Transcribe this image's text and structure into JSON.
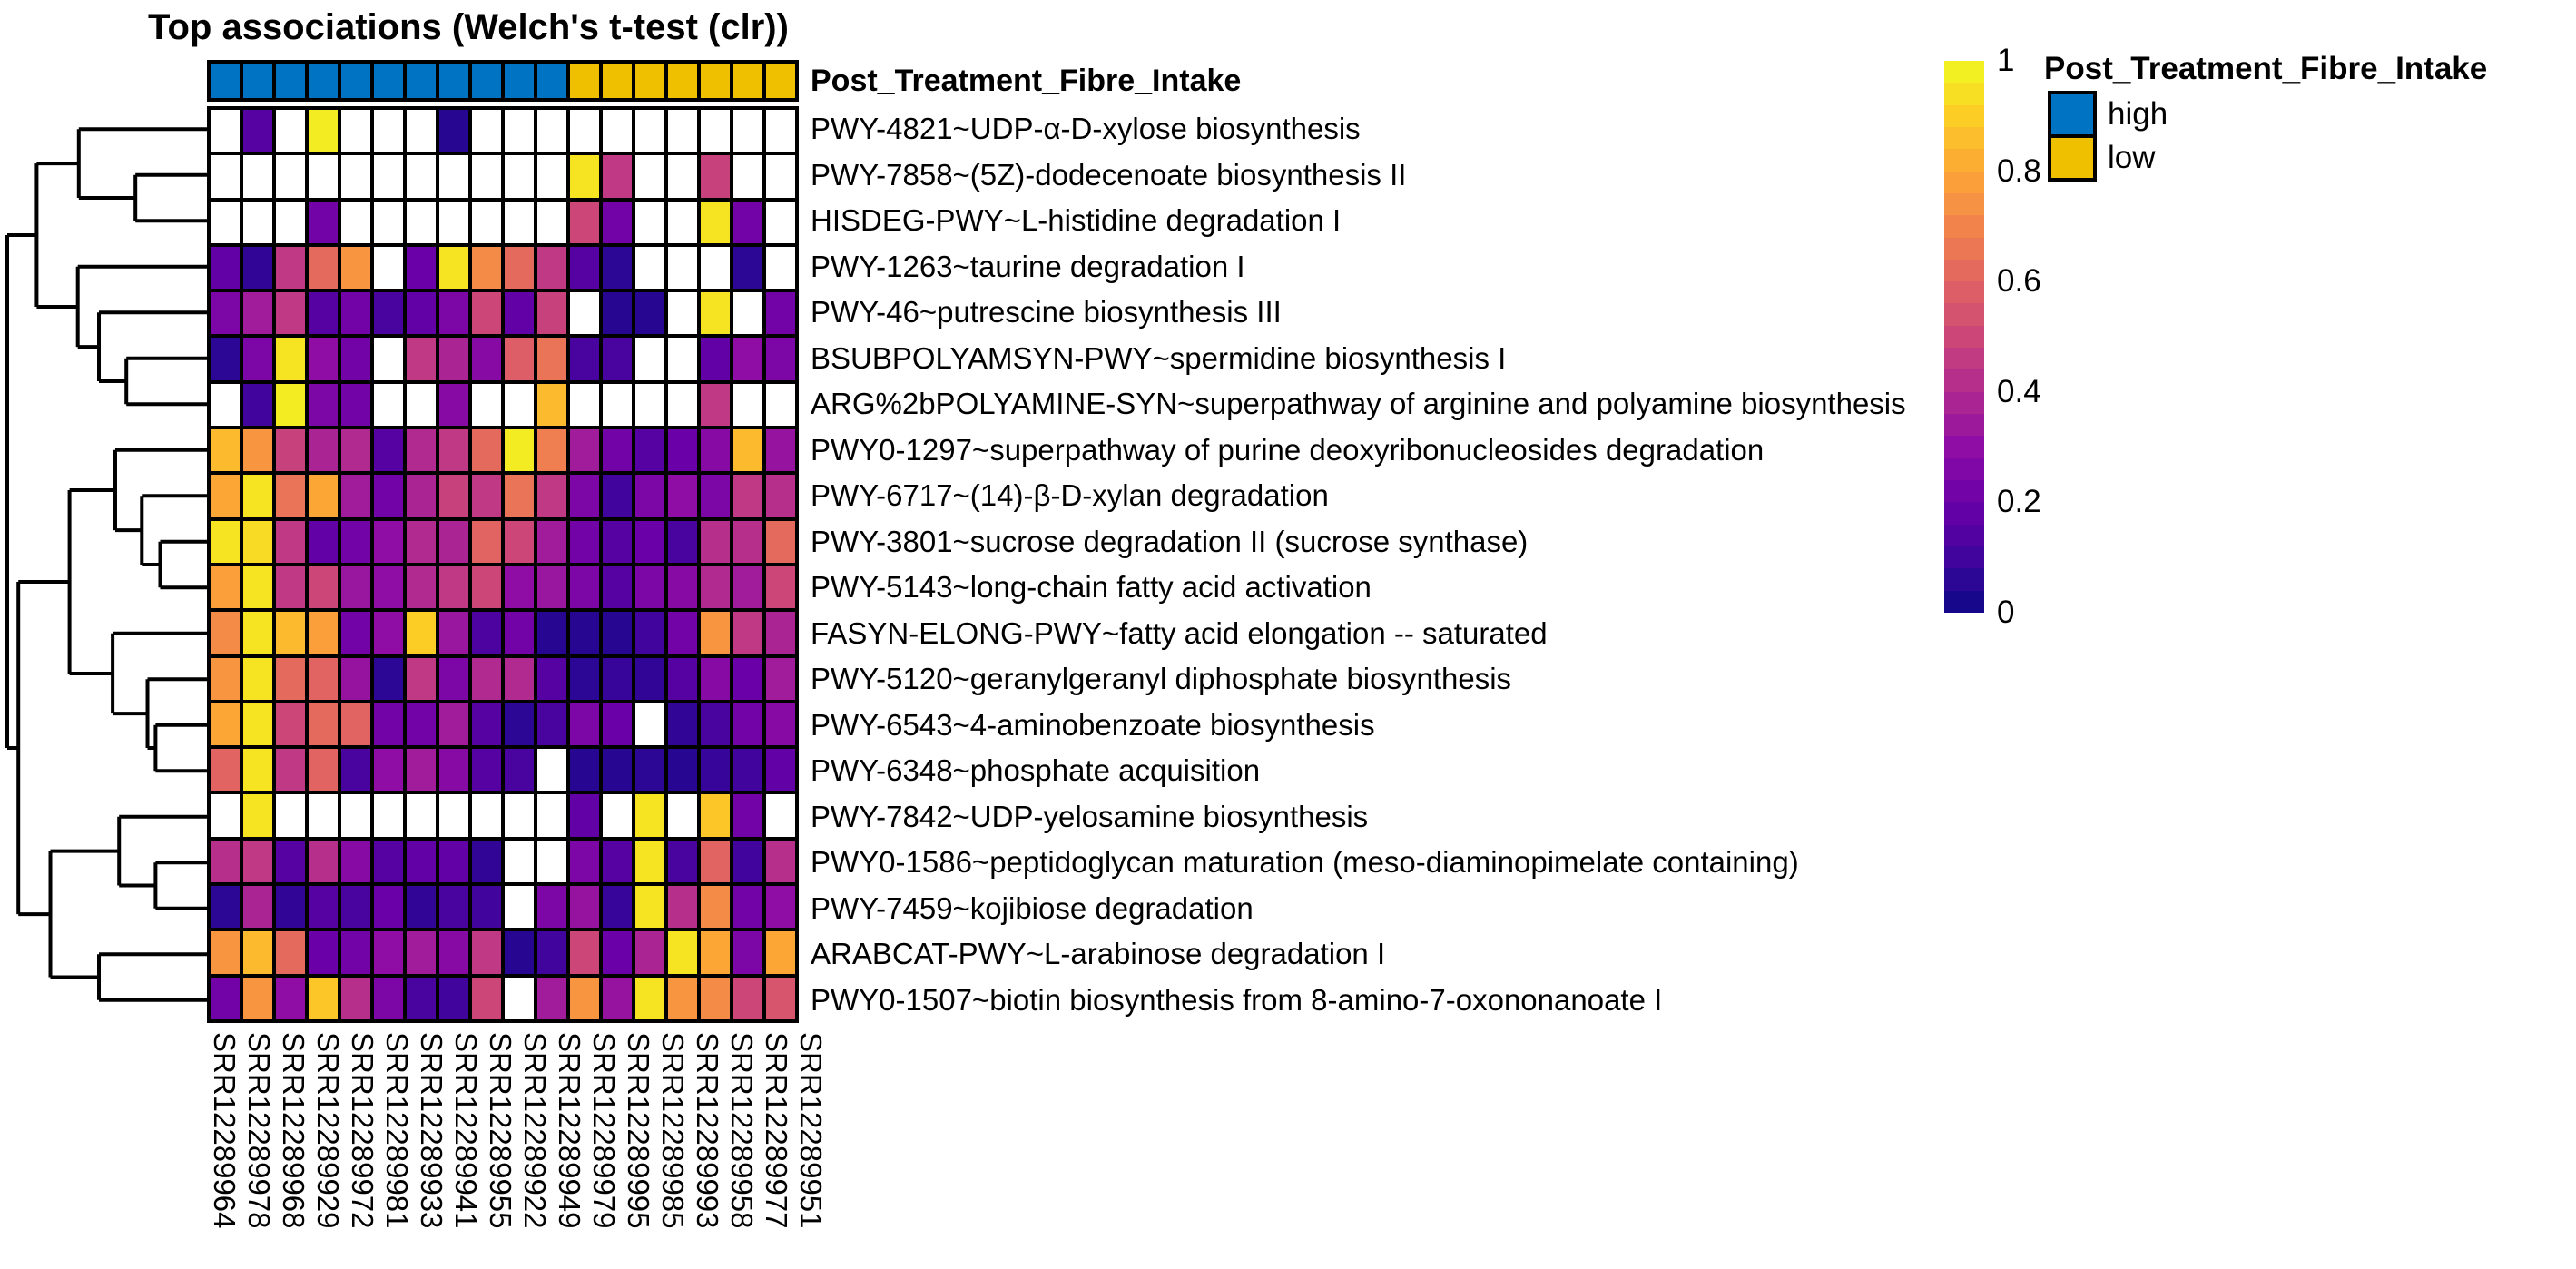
{
  "title": "Top associations (Welch's t-test (clr))",
  "annotation": {
    "label": "Post_Treatment_Fibre_Intake"
  },
  "legend": {
    "title": "Post_Treatment_Fibre_Intake",
    "items": [
      {
        "label": "high",
        "color": "#0073C2"
      },
      {
        "label": "low",
        "color": "#EFC000"
      }
    ]
  },
  "colorbar": {
    "steps": 25,
    "ticks": [
      {
        "label": "1",
        "value": 1
      },
      {
        "label": "0.8",
        "value": 0.8
      },
      {
        "label": "0.6",
        "value": 0.6
      },
      {
        "label": "0.4",
        "value": 0.4
      },
      {
        "label": "0.2",
        "value": 0.2
      },
      {
        "label": "0",
        "value": 0
      }
    ]
  },
  "chart_data": {
    "type": "heatmap",
    "title": "Top associations (Welch's t-test (clr))",
    "colormap": "plasma",
    "value_range": [
      0,
      1
    ],
    "na_color": "#FFFFFF",
    "legend_position": "right",
    "columns": [
      "SRR12289964",
      "SRR12289978",
      "SRR12289968",
      "SRR12289929",
      "SRR12289972",
      "SRR12289981",
      "SRR12289933",
      "SRR12289941",
      "SRR12289955",
      "SRR12289922",
      "SRR12289949",
      "SRR12289979",
      "SRR12289995",
      "SRR12289985",
      "SRR12289993",
      "SRR12289958",
      "SRR12289977",
      "SRR12289951"
    ],
    "rows": [
      "PWY-4821~UDP-α-D-xylose biosynthesis",
      "PWY-7858~(5Z)-dodecenoate biosynthesis II",
      "HISDEG-PWY~L-histidine degradation I",
      "PWY-1263~taurine degradation I",
      "PWY-46~putrescine biosynthesis III",
      "BSUBPOLYAMSYN-PWY~spermidine biosynthesis I",
      "ARG%2bPOLYAMINE-SYN~superpathway of arginine and polyamine biosynthesis",
      "PWY0-1297~superpathway of purine deoxyribonucleosides degradation",
      "PWY-6717~(14)-β-D-xylan degradation",
      "PWY-3801~sucrose degradation II (sucrose synthase)",
      "PWY-5143~long-chain fatty acid activation",
      "FASYN-ELONG-PWY~fatty acid elongation -- saturated",
      "PWY-5120~geranylgeranyl diphosphate biosynthesis",
      "PWY-6543~4-aminobenzoate biosynthesis",
      "PWY-6348~phosphate acquisition",
      "PWY-7842~UDP-yelosamine biosynthesis",
      "PWY0-1586~peptidoglycan maturation (meso-diaminopimelate containing)",
      "PWY-7459~kojibiose degradation",
      "ARABCAT-PWY~L-arabinose degradation I",
      "PWY0-1507~biotin biosynthesis from 8-amino-7-oxononanoate I"
    ],
    "column_annotation": {
      "name": "Post_Treatment_Fibre_Intake",
      "values": [
        "high",
        "high",
        "high",
        "high",
        "high",
        "high",
        "high",
        "high",
        "high",
        "high",
        "high",
        "low",
        "low",
        "low",
        "low",
        "low",
        "low",
        "low"
      ],
      "colors": {
        "high": "#0073C2",
        "low": "#EFC000"
      }
    },
    "values": [
      [
        null,
        0.15,
        null,
        0.97,
        null,
        null,
        null,
        0.05,
        null,
        null,
        null,
        null,
        null,
        null,
        null,
        null,
        null,
        null
      ],
      [
        null,
        null,
        null,
        null,
        null,
        null,
        null,
        null,
        null,
        null,
        null,
        0.95,
        0.45,
        null,
        null,
        0.48,
        null,
        null
      ],
      [
        null,
        null,
        null,
        0.22,
        null,
        null,
        null,
        null,
        null,
        null,
        null,
        0.5,
        0.22,
        null,
        null,
        0.95,
        0.22,
        null
      ],
      [
        0.18,
        0.07,
        0.45,
        0.62,
        0.75,
        null,
        0.2,
        0.95,
        0.72,
        0.62,
        0.45,
        0.15,
        0.06,
        null,
        null,
        null,
        0.06,
        null
      ],
      [
        0.25,
        0.35,
        0.45,
        0.15,
        0.22,
        0.12,
        0.18,
        0.25,
        0.5,
        0.18,
        0.48,
        null,
        0.05,
        0.05,
        null,
        0.95,
        null,
        0.22
      ],
      [
        0.06,
        0.25,
        0.95,
        0.3,
        0.22,
        null,
        0.45,
        0.38,
        0.28,
        0.58,
        0.65,
        0.12,
        0.12,
        null,
        null,
        0.18,
        0.3,
        0.25
      ],
      [
        null,
        0.1,
        0.97,
        0.25,
        0.22,
        null,
        null,
        0.28,
        null,
        null,
        0.85,
        null,
        null,
        null,
        null,
        0.45,
        null,
        null
      ],
      [
        0.85,
        0.75,
        0.48,
        0.38,
        0.4,
        0.15,
        0.4,
        0.45,
        0.62,
        0.97,
        0.68,
        0.35,
        0.22,
        0.15,
        0.2,
        0.28,
        0.85,
        0.32
      ],
      [
        0.8,
        0.95,
        0.65,
        0.8,
        0.35,
        0.22,
        0.38,
        0.48,
        0.45,
        0.65,
        0.45,
        0.25,
        0.1,
        0.25,
        0.3,
        0.25,
        0.45,
        0.42
      ],
      [
        0.95,
        0.93,
        0.45,
        0.18,
        0.22,
        0.3,
        0.4,
        0.38,
        0.6,
        0.5,
        0.35,
        0.22,
        0.15,
        0.2,
        0.12,
        0.42,
        0.42,
        0.62
      ],
      [
        0.78,
        0.95,
        0.45,
        0.5,
        0.33,
        0.3,
        0.4,
        0.45,
        0.5,
        0.3,
        0.33,
        0.25,
        0.15,
        0.25,
        0.28,
        0.4,
        0.35,
        0.5
      ],
      [
        0.72,
        0.95,
        0.85,
        0.78,
        0.22,
        0.3,
        0.9,
        0.33,
        0.13,
        0.22,
        0.05,
        0.05,
        0.05,
        0.1,
        0.22,
        0.75,
        0.45,
        0.38
      ],
      [
        0.75,
        0.95,
        0.62,
        0.6,
        0.32,
        0.06,
        0.45,
        0.25,
        0.4,
        0.4,
        0.15,
        0.06,
        0.08,
        0.07,
        0.15,
        0.28,
        0.2,
        0.35
      ],
      [
        0.8,
        0.95,
        0.5,
        0.62,
        0.6,
        0.22,
        0.22,
        0.35,
        0.15,
        0.06,
        0.12,
        0.25,
        0.2,
        null,
        0.07,
        0.12,
        0.22,
        0.28
      ],
      [
        0.6,
        0.95,
        0.45,
        0.6,
        0.12,
        0.3,
        0.35,
        0.28,
        0.15,
        0.12,
        null,
        0.05,
        0.05,
        0.06,
        0.05,
        0.08,
        0.1,
        0.18
      ],
      [
        null,
        0.95,
        null,
        null,
        null,
        null,
        null,
        null,
        null,
        null,
        null,
        0.18,
        null,
        0.95,
        null,
        0.88,
        0.22,
        null
      ],
      [
        0.42,
        0.45,
        0.15,
        0.42,
        0.28,
        0.15,
        0.18,
        0.18,
        0.07,
        null,
        null,
        0.25,
        0.15,
        0.95,
        0.12,
        0.6,
        0.1,
        0.42
      ],
      [
        0.06,
        0.38,
        0.07,
        0.15,
        0.12,
        0.2,
        0.07,
        0.12,
        0.1,
        null,
        0.25,
        0.32,
        0.08,
        0.95,
        0.42,
        0.72,
        0.22,
        0.3
      ],
      [
        0.75,
        0.85,
        0.62,
        0.2,
        0.22,
        0.3,
        0.35,
        0.28,
        0.45,
        0.05,
        0.1,
        0.5,
        0.2,
        0.38,
        0.95,
        0.8,
        0.25,
        0.8
      ],
      [
        0.22,
        0.75,
        0.3,
        0.88,
        0.42,
        0.25,
        0.12,
        0.1,
        0.5,
        null,
        0.35,
        0.75,
        0.32,
        0.95,
        0.75,
        0.72,
        0.5,
        0.55
      ]
    ],
    "row_dendrogram": {
      "x": 0.009,
      "children": [
        {
          "x": 0.155,
          "children": [
            {
              "x": 0.364,
              "children": [
                {
                  "leaf": 0
                },
                {
                  "x": 0.645,
                  "children": [
                    {
                      "leaf": 1
                    },
                    {
                      "leaf": 2
                    }
                  ]
                }
              ]
            },
            {
              "x": 0.359,
              "children": [
                {
                  "leaf": 3
                },
                {
                  "x": 0.464,
                  "children": [
                    {
                      "leaf": 4
                    },
                    {
                      "x": 0.6,
                      "children": [
                        {
                          "leaf": 5
                        },
                        {
                          "leaf": 6
                        }
                      ]
                    }
                  ]
                }
              ]
            }
          ]
        },
        {
          "x": 0.064,
          "children": [
            {
              "x": 0.318,
              "children": [
                {
                  "x": 0.545,
                  "children": [
                    {
                      "leaf": 7
                    },
                    {
                      "x": 0.677,
                      "children": [
                        {
                          "leaf": 8
                        },
                        {
                          "x": 0.768,
                          "children": [
                            {
                              "leaf": 9
                            },
                            {
                              "leaf": 10
                            }
                          ]
                        }
                      ]
                    }
                  ]
                },
                {
                  "x": 0.532,
                  "children": [
                    {
                      "leaf": 11
                    },
                    {
                      "x": 0.705,
                      "children": [
                        {
                          "leaf": 12
                        },
                        {
                          "x": 0.745,
                          "children": [
                            {
                              "leaf": 13
                            },
                            {
                              "leaf": 14
                            }
                          ]
                        }
                      ]
                    }
                  ]
                }
              ]
            },
            {
              "x": 0.223,
              "children": [
                {
                  "x": 0.564,
                  "children": [
                    {
                      "leaf": 15
                    },
                    {
                      "x": 0.745,
                      "children": [
                        {
                          "leaf": 16
                        },
                        {
                          "leaf": 17
                        }
                      ]
                    }
                  ]
                },
                {
                  "x": 0.464,
                  "children": [
                    {
                      "leaf": 18
                    },
                    {
                      "leaf": 19
                    }
                  ]
                }
              ]
            }
          ]
        }
      ]
    }
  }
}
